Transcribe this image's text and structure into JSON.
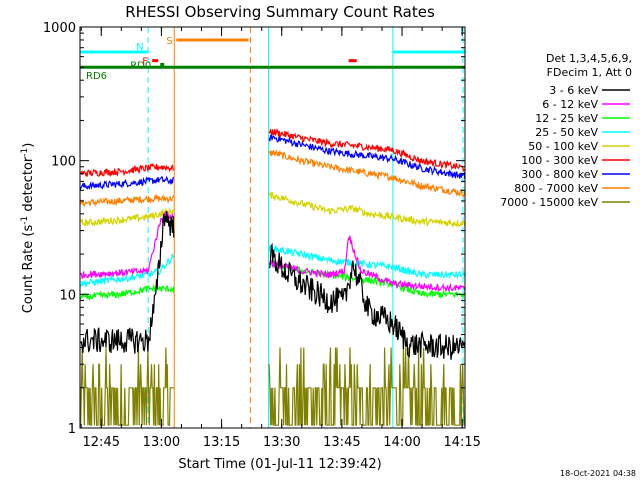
{
  "chart_data": {
    "type": "line",
    "title": "RHESSI Observing Summary Count Rates",
    "xlabel": "Start Time (01-Jul-11 12:39:42)",
    "ylabel": "Count Rate (s-1 detector-1)",
    "ylabel_main": "Count Rate (s",
    "ylabel_sup1": "-1",
    "ylabel_mid": " detector",
    "ylabel_sup2": "-1",
    "ylabel_end": ")",
    "y_scale": "log",
    "ylim": [
      1,
      1000
    ],
    "xlim_minutes": [
      0,
      96
    ],
    "x_tick_labels": [
      "12:45",
      "13:00",
      "13:15",
      "13:30",
      "13:45",
      "14:00",
      "14:15"
    ],
    "x_tick_minutes": [
      5.3,
      20.3,
      35.3,
      50.3,
      65.3,
      80.3,
      95.3
    ],
    "y_tick_labels": [
      "1",
      "10",
      "100",
      "1000"
    ],
    "y_tick_values": [
      1,
      10,
      100,
      1000
    ],
    "legend_position": "right",
    "legend_header": [
      "Det 1,3,4,5,6,9,",
      "FDecim 1, Att 0"
    ],
    "timestamp": "18-Oct-2021 04:38",
    "gaps_minutes": [
      [
        23.5,
        47.0
      ]
    ],
    "series": [
      {
        "name": "3 - 6 keV",
        "color": "#000000",
        "x": [
          0,
          5,
          10,
          15,
          17,
          19,
          21,
          23,
          48,
          52,
          57,
          62,
          66,
          68,
          72,
          76,
          78,
          82,
          88,
          92,
          96
        ],
        "y": [
          4.5,
          4.5,
          4.5,
          4.5,
          4.5,
          10,
          40,
          32,
          19,
          14,
          11,
          9,
          9,
          17,
          7.5,
          6.5,
          6,
          4.2,
          4.1,
          4.0,
          4.0
        ]
      },
      {
        "name": "6 - 12 keV",
        "color": "#ff00ff",
        "x": [
          0,
          10,
          17,
          20,
          21,
          23,
          48,
          55,
          62,
          66,
          67,
          70,
          78,
          85,
          96
        ],
        "y": [
          14,
          14.5,
          15,
          35,
          40,
          38,
          17,
          15,
          14,
          15,
          28,
          15,
          12,
          11.5,
          11
        ]
      },
      {
        "name": "12 - 25 keV",
        "color": "#00ff00",
        "x": [
          0,
          10,
          17,
          20,
          23,
          48,
          55,
          62,
          70,
          78,
          85,
          96
        ],
        "y": [
          9.5,
          10,
          11,
          11,
          11,
          17,
          15,
          14,
          13,
          12,
          10,
          10
        ]
      },
      {
        "name": "25 - 50 keV",
        "color": "#00ffff",
        "x": [
          0,
          10,
          17,
          20,
          23,
          48,
          55,
          62,
          70,
          78,
          85,
          96
        ],
        "y": [
          12,
          13,
          14,
          15,
          19,
          22,
          20,
          18,
          17,
          16,
          14,
          14
        ]
      },
      {
        "name": "50 - 100 keV",
        "color": "#d4d400",
        "x": [
          0,
          10,
          17,
          20,
          23,
          48,
          55,
          62,
          68,
          72,
          78,
          85,
          96
        ],
        "y": [
          34,
          36,
          38,
          40,
          42,
          55,
          48,
          42,
          44,
          40,
          38,
          35,
          34
        ]
      },
      {
        "name": "100 - 300 keV",
        "color": "#ff0000",
        "x": [
          0,
          10,
          17,
          20,
          23,
          48,
          55,
          62,
          70,
          78,
          85,
          96
        ],
        "y": [
          80,
          83,
          88,
          90,
          88,
          165,
          148,
          135,
          128,
          120,
          100,
          88
        ]
      },
      {
        "name": "300 - 800 keV",
        "color": "#0000ff",
        "x": [
          0,
          10,
          17,
          20,
          23,
          48,
          55,
          62,
          70,
          78,
          85,
          96
        ],
        "y": [
          64,
          67,
          70,
          72,
          70,
          150,
          132,
          118,
          110,
          103,
          88,
          76
        ]
      },
      {
        "name": "800 - 7000 keV",
        "color": "#ff8000",
        "x": [
          0,
          10,
          17,
          20,
          23,
          48,
          55,
          62,
          70,
          78,
          85,
          96
        ],
        "y": [
          48,
          50,
          52,
          52,
          52,
          115,
          100,
          90,
          82,
          75,
          65,
          57
        ]
      },
      {
        "name": "7000 - 15000 keV",
        "color": "#808000",
        "x": [
          0,
          23,
          48,
          60,
          65,
          70,
          76,
          96
        ],
        "y": [
          2,
          2,
          2,
          2,
          3,
          2,
          2,
          2
        ]
      }
    ],
    "flags": [
      {
        "name": "RD6",
        "color": "#008000",
        "y": 500,
        "segments": [
          [
            0,
            96
          ]
        ]
      },
      {
        "name": "RD0",
        "color": "#008000",
        "y": 525,
        "segments": [
          [
            20,
            21
          ]
        ]
      },
      {
        "name": "S",
        "color": "#ff8000",
        "y": 800,
        "segments": [
          [
            24,
            42
          ]
        ]
      },
      {
        "name": "N",
        "color": "#00ffff",
        "y": 650,
        "segments": [
          [
            0,
            17
          ],
          [
            78,
            96
          ]
        ]
      },
      {
        "name": "F",
        "color": "#ff0000",
        "y": 560,
        "segments": [
          [
            18,
            19.5
          ],
          [
            67,
            69
          ]
        ]
      }
    ],
    "vlines": [
      {
        "x": 0,
        "color": "#00ffff",
        "style": "solid"
      },
      {
        "x": 17,
        "color": "#00ffff",
        "style": "dashed"
      },
      {
        "x": 23.5,
        "color": "#ff8000",
        "style": "solid"
      },
      {
        "x": 42.5,
        "color": "#ff8000",
        "style": "dashed"
      },
      {
        "x": 47,
        "color": "#00ffff",
        "style": "solid"
      },
      {
        "x": 78,
        "color": "#00ffff",
        "style": "solid"
      },
      {
        "x": 95.5,
        "color": "#00ffff",
        "style": "dashed"
      }
    ]
  }
}
